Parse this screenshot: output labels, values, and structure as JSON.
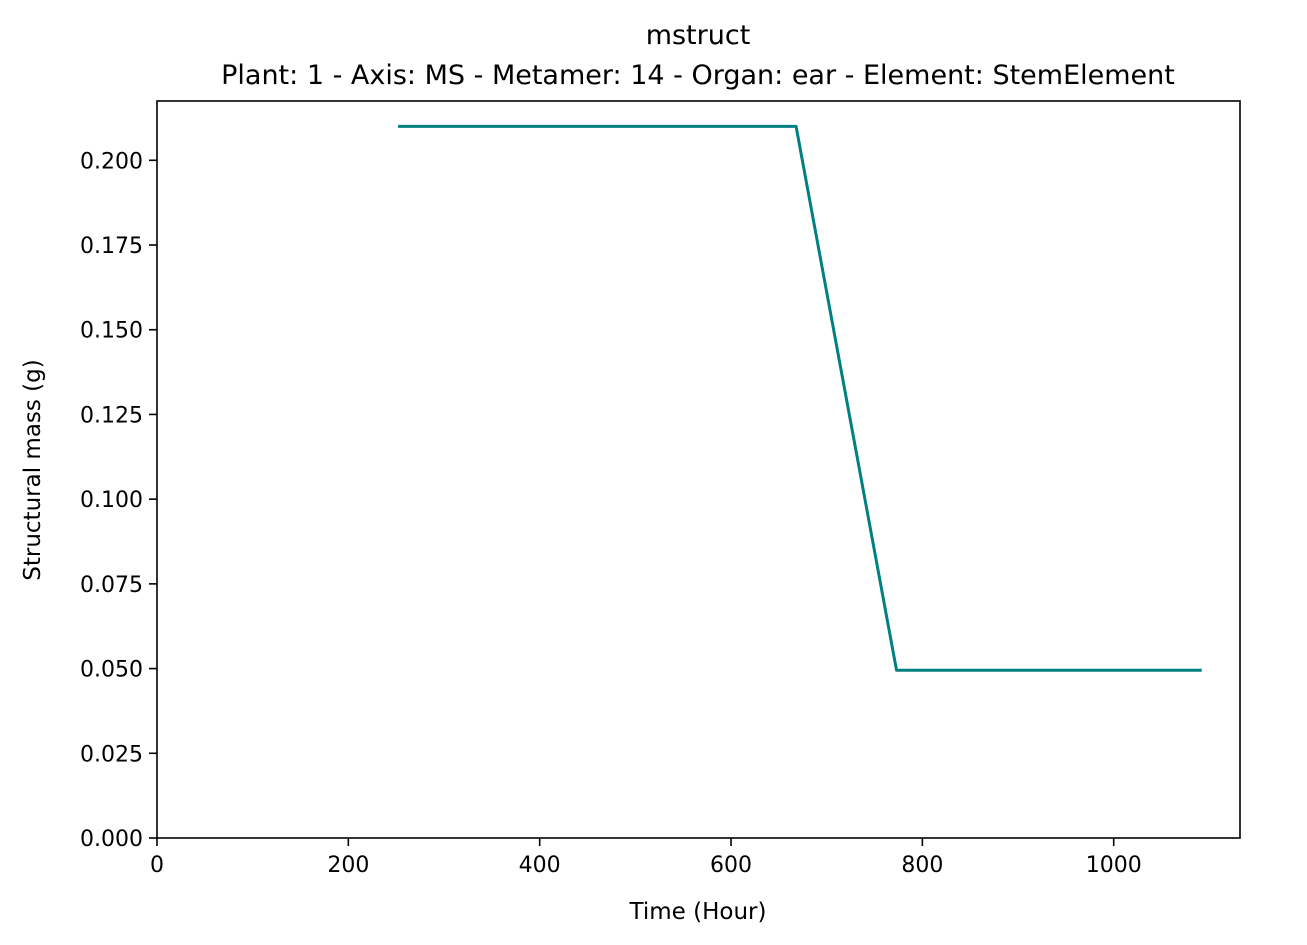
{
  "chart_data": {
    "type": "line",
    "title": "mstruct",
    "subtitle": "Plant: 1 - Axis: MS - Metamer: 14 - Organ: ear - Element: StemElement",
    "xlabel": "Time (Hour)",
    "ylabel": "Structural mass (g)",
    "xlim": [
      0,
      1132
    ],
    "ylim": [
      0,
      0.2175
    ],
    "xticks": [
      0,
      200,
      400,
      600,
      800,
      1000
    ],
    "xtick_labels": [
      "0",
      "200",
      "400",
      "600",
      "800",
      "1000"
    ],
    "yticks": [
      0,
      0.025,
      0.05,
      0.075,
      0.1,
      0.125,
      0.15,
      0.175,
      0.2
    ],
    "ytick_labels": [
      "0.000",
      "0.025",
      "0.050",
      "0.075",
      "0.100",
      "0.125",
      "0.150",
      "0.175",
      "0.200"
    ],
    "grid": false,
    "series": [
      {
        "color": "#008080",
        "x": [
          252,
          668,
          773,
          1092
        ],
        "y": [
          0.21,
          0.21,
          0.0495,
          0.0495
        ]
      }
    ]
  }
}
